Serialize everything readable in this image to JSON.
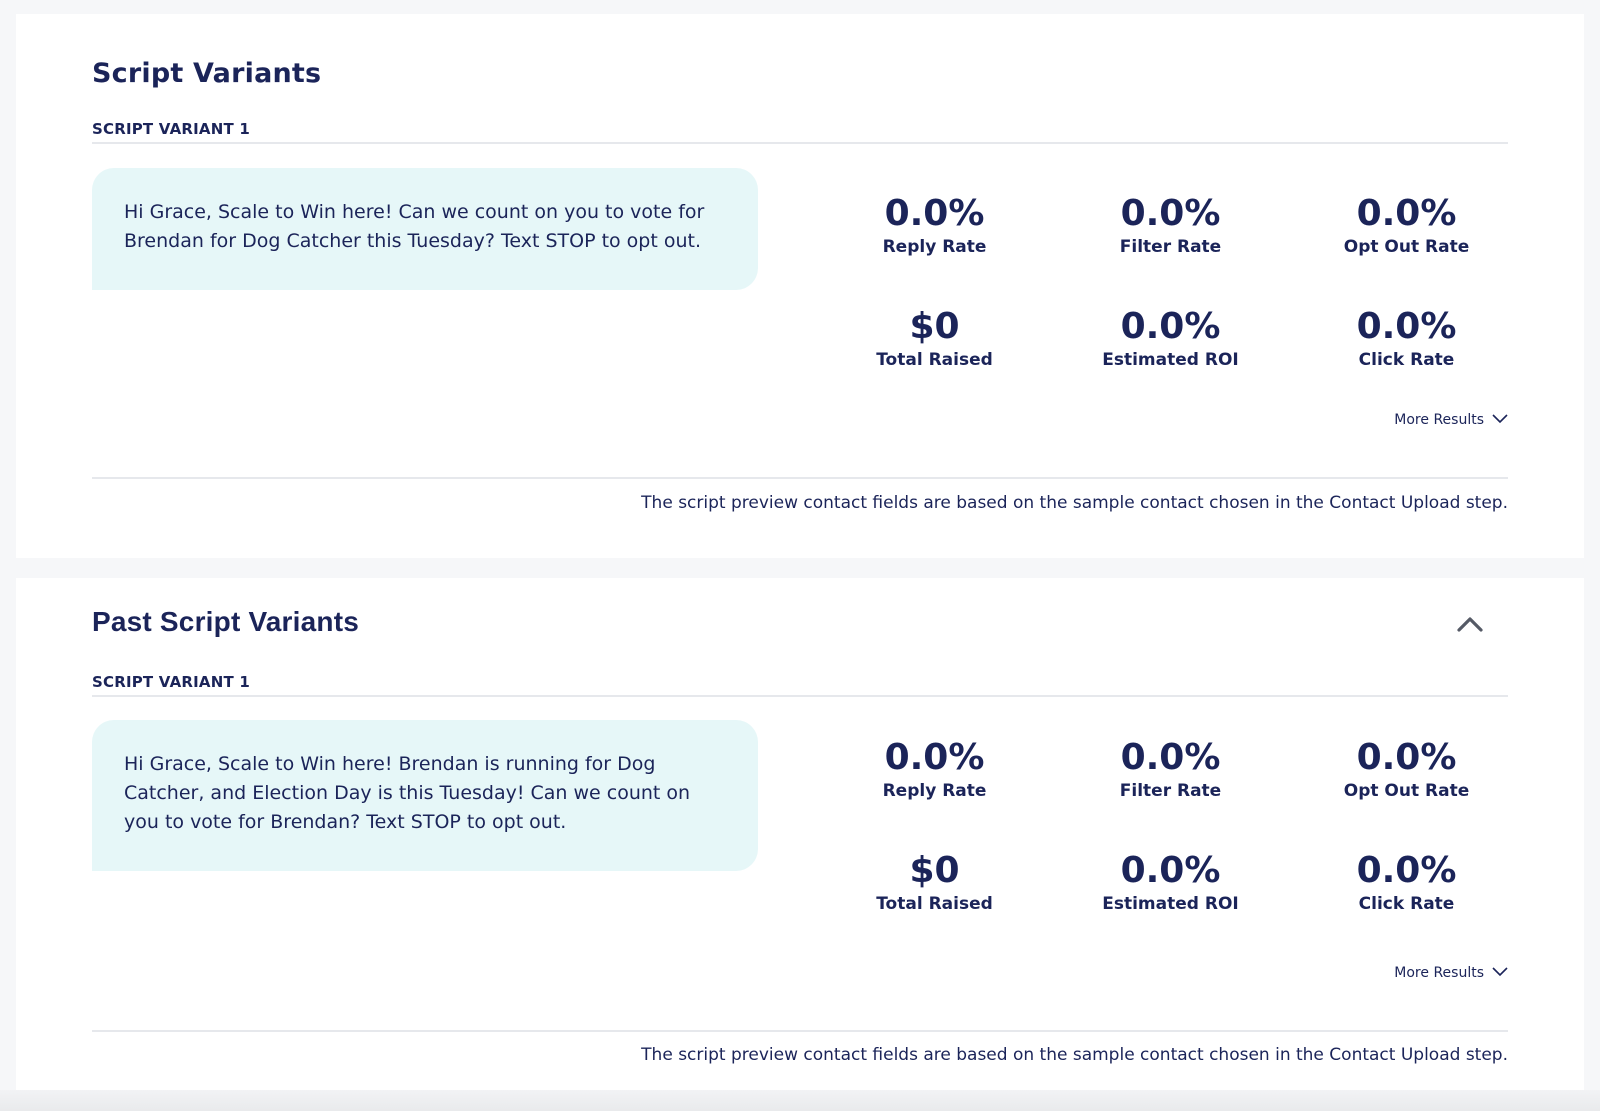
{
  "current_section": {
    "title": "Script Variants",
    "variant_label": "SCRIPT VARIANT 1",
    "script_text": "Hi Grace, Scale to Win here! Can we count on you to vote for Brendan for Dog Catcher this Tuesday? Text STOP to opt out.",
    "stats": [
      {
        "value": "0.0%",
        "label": "Reply Rate"
      },
      {
        "value": "0.0%",
        "label": "Filter Rate"
      },
      {
        "value": "0.0%",
        "label": "Opt Out Rate"
      },
      {
        "value": "$0",
        "label": "Total Raised"
      },
      {
        "value": "0.0%",
        "label": "Estimated ROI"
      },
      {
        "value": "0.0%",
        "label": "Click Rate"
      }
    ],
    "more_results_label": "More Results",
    "footer_note": "The script preview contact fields are based on the sample contact chosen in the Contact Upload step."
  },
  "past_section": {
    "title": "Past Script Variants",
    "collapse_icon": "chevron-up-icon",
    "variant_label": "SCRIPT VARIANT 1",
    "script_text": "Hi Grace, Scale to Win here! Brendan is running for Dog Catcher, and Election Day is this Tuesday! Can we count on you to vote for Brendan? Text STOP to opt out.",
    "stats": [
      {
        "value": "0.0%",
        "label": "Reply Rate"
      },
      {
        "value": "0.0%",
        "label": "Filter Rate"
      },
      {
        "value": "0.0%",
        "label": "Opt Out Rate"
      },
      {
        "value": "$0",
        "label": "Total Raised"
      },
      {
        "value": "0.0%",
        "label": "Estimated ROI"
      },
      {
        "value": "0.0%",
        "label": "Click Rate"
      }
    ],
    "more_results_label": "More Results",
    "footer_note": "The script preview contact fields are based on the sample contact chosen in the Contact Upload step."
  },
  "colors": {
    "text_primary": "#1b2459",
    "bubble_background": "#e6f7f8",
    "divider": "#e6e8ec",
    "page_background": "#f6f7f9"
  }
}
